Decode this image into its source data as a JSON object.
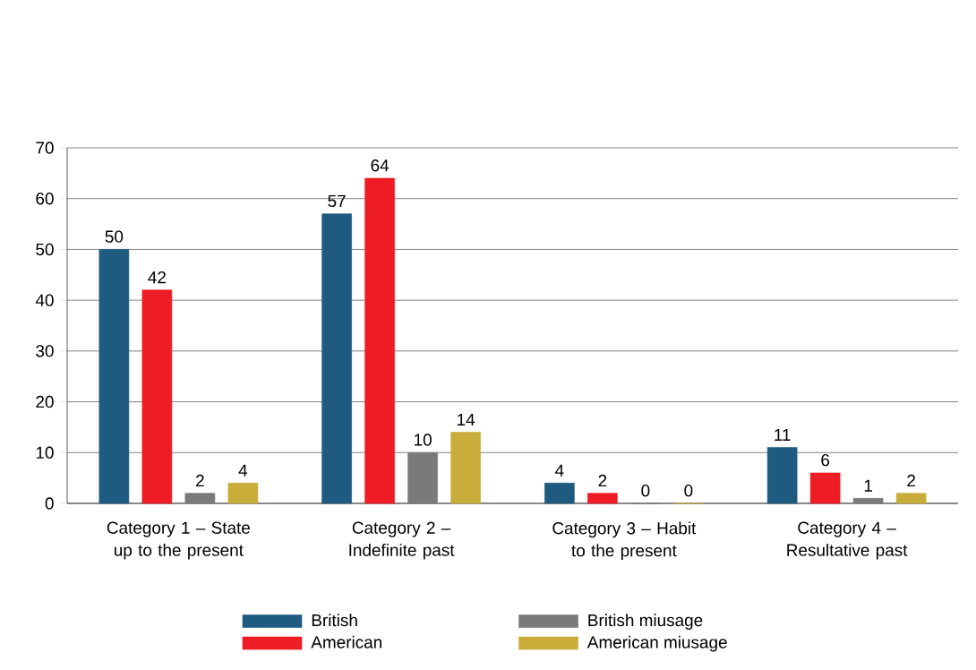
{
  "chart_data": {
    "type": "bar",
    "categories": [
      "Category 1 – State up to the present",
      "Category 2 – Indefinite past",
      "Category 3 – Habit to the present",
      "Category 4 – Resultative past"
    ],
    "series": [
      {
        "name": "British",
        "color": "#1f5a80",
        "values": [
          50,
          57,
          4,
          11
        ]
      },
      {
        "name": "American",
        "color": "#ee1c24",
        "values": [
          42,
          64,
          2,
          6
        ]
      },
      {
        "name": "British miusage",
        "color": "#7a7a7a",
        "values": [
          2,
          10,
          0,
          1
        ]
      },
      {
        "name": "American miusage",
        "color": "#c9ad3a",
        "values": [
          4,
          14,
          0,
          2
        ]
      }
    ],
    "ylim": [
      0,
      70
    ],
    "yticks": [
      0,
      10,
      20,
      30,
      40,
      50,
      60,
      70
    ],
    "grid": "y",
    "legend": "bottom",
    "data_labels": true
  }
}
